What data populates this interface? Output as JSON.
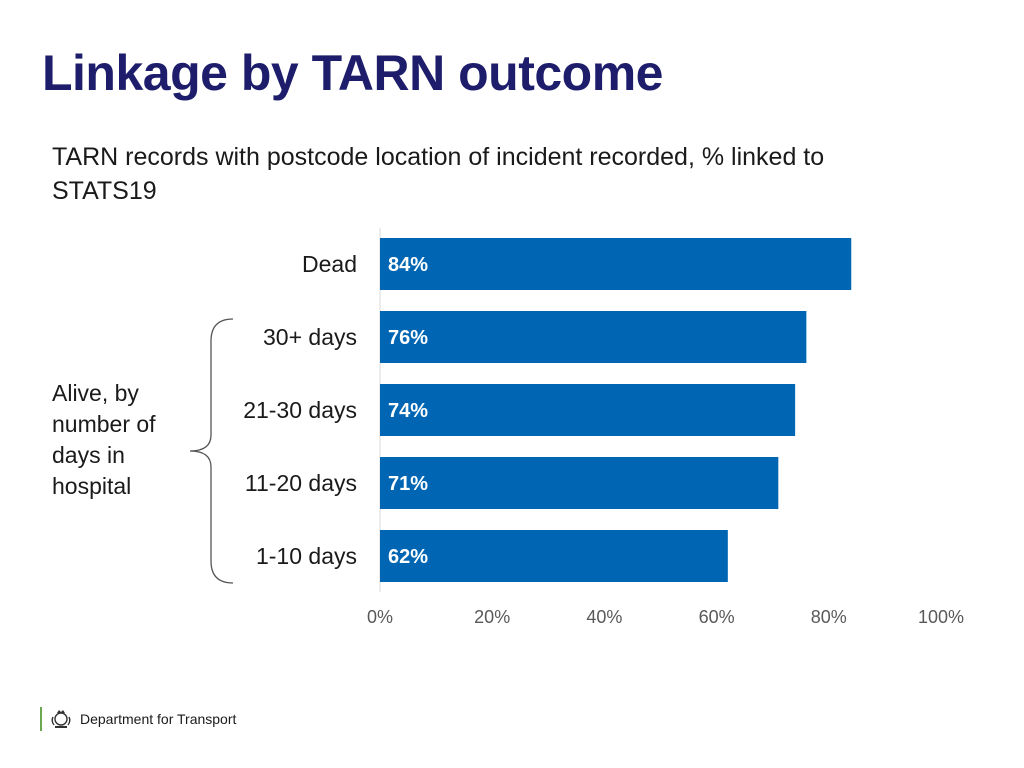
{
  "slide": {
    "title": "Linkage by TARN outcome",
    "group_label": "Alive, by number of days in hospital",
    "footer": "Department for Transport"
  },
  "colors": {
    "title": "#1d1d6b",
    "bar": "#0066b3",
    "bar_label": "#ffffff",
    "tick_label": "#595959",
    "axis_line": "#d9d9d9",
    "logo_accent": "#6aa84f"
  },
  "icons": {
    "footer_logo": "royal-crest-icon"
  },
  "chart_data": {
    "type": "bar",
    "orientation": "horizontal",
    "title": "TARN records with postcode location of incident recorded, % linked to STATS19",
    "categories": [
      "Dead",
      "30+ days",
      "21-30 days",
      "11-20 days",
      "1-10 days"
    ],
    "values": [
      84,
      76,
      74,
      71,
      62
    ],
    "data_labels": [
      "84%",
      "76%",
      "74%",
      "71%",
      "62%"
    ],
    "xlim": [
      0,
      100
    ],
    "xticks": [
      0,
      20,
      40,
      60,
      80,
      100
    ],
    "xtick_labels": [
      "0%",
      "20%",
      "40%",
      "60%",
      "80%",
      "100%"
    ],
    "xlabel": "",
    "ylabel": "",
    "grid": false,
    "legend": "none",
    "category_bracket": {
      "label": "Alive, by number of days in hospital",
      "categories": [
        "30+ days",
        "21-30 days",
        "11-20 days",
        "1-10 days"
      ]
    }
  }
}
